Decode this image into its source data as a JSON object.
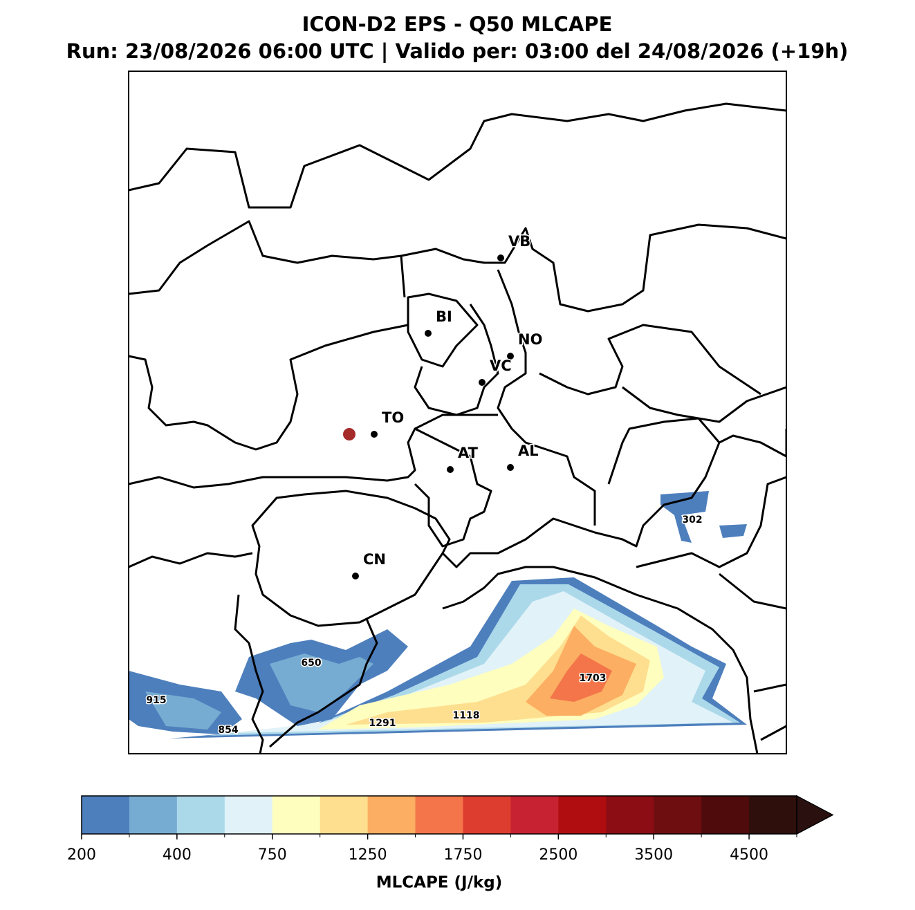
{
  "header": {
    "title": "ICON-D2 EPS - Q50 MLCAPE",
    "subtitle": "Run: 23/08/2026 06:00 UTC | Valido per: 03:00 del 24/08/2026 (+19h)"
  },
  "map": {
    "cities": [
      {
        "label": "VB"
      },
      {
        "label": "BI"
      },
      {
        "label": "NO"
      },
      {
        "label": "VC"
      },
      {
        "label": "TO"
      },
      {
        "label": "AT"
      },
      {
        "label": "AL"
      },
      {
        "label": "CN"
      }
    ],
    "contour_labels": [
      302,
      650,
      915,
      854,
      1291,
      1118,
      1703
    ]
  },
  "colorbar": {
    "label": "MLCAPE (J/kg)",
    "levels": [
      200,
      300,
      400,
      500,
      750,
      1000,
      1250,
      1500,
      1750,
      2000,
      2500,
      3000,
      3500,
      4000,
      4500,
      5000
    ],
    "ticks": [
      200,
      400,
      750,
      1250,
      1750,
      2500,
      3500,
      4500
    ],
    "colors": [
      "#4e7fbd",
      "#77acd2",
      "#acd9ea",
      "#e1f2f8",
      "#fefebf",
      "#fedf8f",
      "#fcae62",
      "#f37549",
      "#dd3d2f",
      "#c72232",
      "#b00d11",
      "#8c0d13",
      "#6f0e10",
      "#4f0b0c",
      "#2e0f0c"
    ],
    "extend_color": "#2a1110"
  }
}
